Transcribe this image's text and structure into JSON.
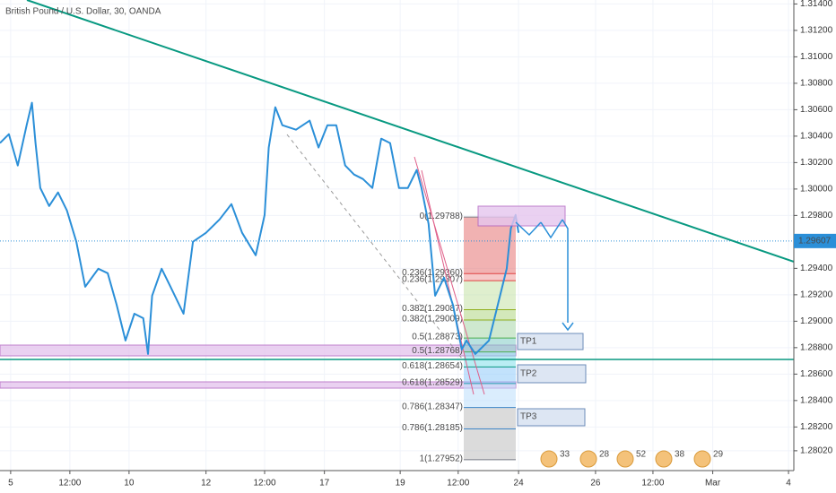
{
  "chart_data": {
    "type": "line",
    "title": "British Pound / U.S. Dollar, 30, OANDA",
    "xlim": [
      -0.18,
      13.23
    ],
    "ylim": [
      1.2787,
      1.3143
    ],
    "xticks": [
      {
        "value": 0,
        "label": "5"
      },
      {
        "value": 1,
        "label": "12:00"
      },
      {
        "value": 2,
        "label": "10"
      },
      {
        "value": 3.3,
        "label": "12"
      },
      {
        "value": 4.29,
        "label": "12:00"
      },
      {
        "value": 5.3,
        "label": "17"
      },
      {
        "value": 6.58,
        "label": "19"
      },
      {
        "value": 7.56,
        "label": "12:00"
      },
      {
        "value": 8.58,
        "label": "24"
      },
      {
        "value": 9.88,
        "label": "26"
      },
      {
        "value": 10.85,
        "label": "12:00"
      },
      {
        "value": 11.86,
        "label": "Mar"
      },
      {
        "value": 13.14,
        "label": "4"
      }
    ],
    "yticks": [
      {
        "value": 1.314,
        "label": "1.31400"
      },
      {
        "value": 1.312,
        "label": "1.31200"
      },
      {
        "value": 1.31,
        "label": "1.31000"
      },
      {
        "value": 1.308,
        "label": "1.30800"
      },
      {
        "value": 1.306,
        "label": "1.30600"
      },
      {
        "value": 1.304,
        "label": "1.30400"
      },
      {
        "value": 1.302,
        "label": "1.30200"
      },
      {
        "value": 1.3,
        "label": "1.30000"
      },
      {
        "value": 1.298,
        "label": "1.29800"
      },
      {
        "value": 1.294,
        "label": "1.29400"
      },
      {
        "value": 1.292,
        "label": "1.29200"
      },
      {
        "value": 1.29,
        "label": "1.29000"
      },
      {
        "value": 1.288,
        "label": "1.28800"
      },
      {
        "value": 1.286,
        "label": "1.28600"
      },
      {
        "value": 1.284,
        "label": "1.28400"
      },
      {
        "value": 1.282,
        "label": "1.28200"
      },
      {
        "value": 1.2802,
        "label": "1.28020"
      }
    ],
    "x": [
      -0.18,
      -0.03,
      0.12,
      0.27,
      0.36,
      0.42,
      0.5,
      0.65,
      0.8,
      0.95,
      1.11,
      1.26,
      1.48,
      1.64,
      1.79,
      1.94,
      2.09,
      2.24,
      2.32,
      2.39,
      2.55,
      2.7,
      2.92,
      3.08,
      3.3,
      3.53,
      3.73,
      3.91,
      4.14,
      4.29,
      4.36,
      4.47,
      4.59,
      4.82,
      5.05,
      5.2,
      5.35,
      5.5,
      5.65,
      5.8,
      5.95,
      6.11,
      6.26,
      6.41,
      6.56,
      6.71,
      6.86,
      6.94,
      7.06,
      7.17,
      7.32,
      7.47,
      7.62,
      7.7,
      7.85,
      8.08,
      8.23,
      8.38,
      8.45,
      8.53,
      8.58
    ],
    "series": [
      {
        "color": "#2b8fd8",
        "values": [
          1.30348,
          1.30415,
          1.30178,
          1.30483,
          1.30653,
          1.30348,
          1.30008,
          1.29872,
          1.29974,
          1.29838,
          1.29601,
          1.29261,
          1.29397,
          1.29363,
          1.29125,
          1.28854,
          1.29057,
          1.29023,
          1.28752,
          1.29193,
          1.29397,
          1.29261,
          1.29057,
          1.29601,
          1.29669,
          1.2977,
          1.29886,
          1.29669,
          1.29499,
          1.29804,
          1.30314,
          1.30619,
          1.30483,
          1.30449,
          1.30517,
          1.30314,
          1.30483,
          1.30483,
          1.30178,
          1.3011,
          1.30076,
          1.30008,
          1.30381,
          1.30348,
          1.30008,
          1.30008,
          1.30144,
          1.30008,
          1.29736,
          1.29193,
          1.29329,
          1.29125,
          1.28786,
          1.28854,
          1.28752,
          1.28854,
          1.29125,
          1.29397,
          1.29702,
          1.29804,
          1.29669
        ]
      }
    ],
    "last_price": {
      "value": 1.29607,
      "label": "1.29607"
    },
    "fib": [
      {
        "value": 1.29788,
        "label": "0(1.29788)",
        "color": "#787b86"
      },
      {
        "value": 1.2936,
        "label": "0.236(1.29360)",
        "color": "#e04040"
      },
      {
        "value": 1.29307,
        "label": "0.236(1.29307)",
        "color": "#e04040"
      },
      {
        "value": 1.29087,
        "label": "0.382(1.29087)",
        "color": "#8fae1b"
      },
      {
        "value": 1.29009,
        "label": "0.382(1.29009)",
        "color": "#8fae1b"
      },
      {
        "value": 1.28873,
        "label": "0.5(1.28873)",
        "color": "#4caf50"
      },
      {
        "value": 1.28768,
        "label": "0.5(1.28768)",
        "color": "#4caf50"
      },
      {
        "value": 1.28654,
        "label": "0.618(1.28654)",
        "color": "#089981"
      },
      {
        "value": 1.28529,
        "label": "0.618(1.28529)",
        "color": "#2aa0b0"
      },
      {
        "value": 1.28347,
        "label": "0.786(1.28347)",
        "color": "#3d85c6"
      },
      {
        "value": 1.28185,
        "label": "0.786(1.28185)",
        "color": "#3d85c6"
      },
      {
        "value": 1.27952,
        "label": "1(1.27952)",
        "color": "#787b86"
      }
    ],
    "targets": [
      "TP1",
      "TP2",
      "TP3"
    ],
    "events": [
      "33",
      "28",
      "52",
      "38",
      "29"
    ]
  }
}
